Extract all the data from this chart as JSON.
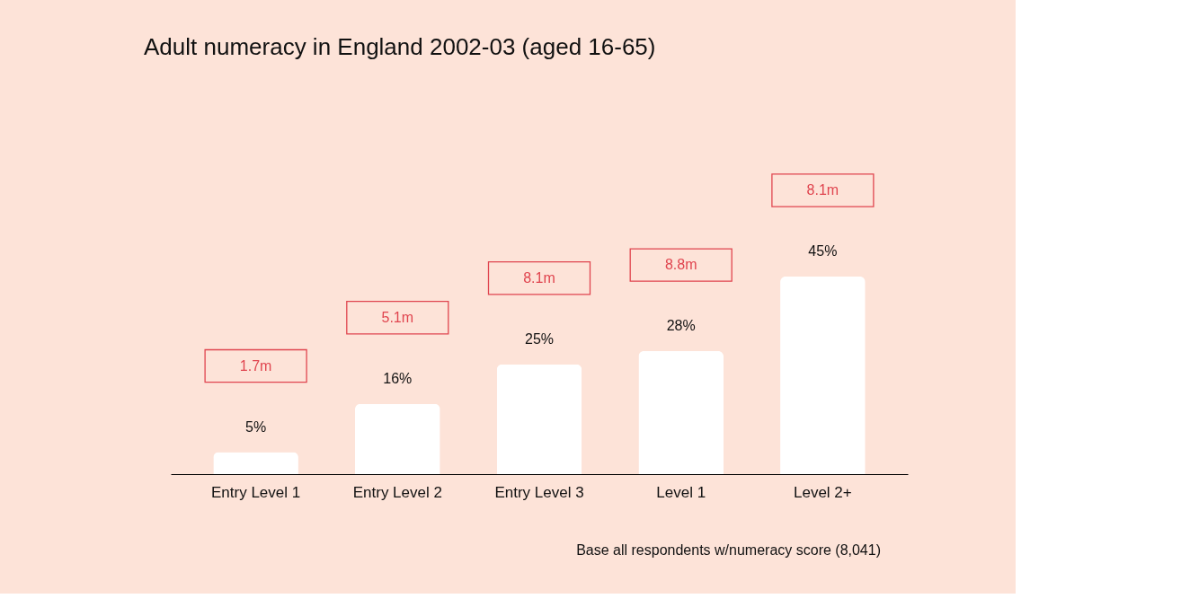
{
  "chart_data": {
    "type": "bar",
    "title": "Adult numeracy in England 2002-03 (aged 16-65)",
    "categories": [
      "Entry Level 1",
      "Entry Level 2",
      "Entry Level 3",
      "Level 1",
      "Level 2+"
    ],
    "values": [
      5,
      16,
      25,
      28,
      45
    ],
    "color": "#ffffff",
    "value_labels": [
      "5%",
      "16%",
      "25%",
      "28%",
      "45%"
    ],
    "annotations": [
      "1.7m",
      "5.1m",
      "8.1m",
      "8.8m",
      "8.1m",
      "Base all respondents w/numeracy score (8,041)"
    ]
  }
}
